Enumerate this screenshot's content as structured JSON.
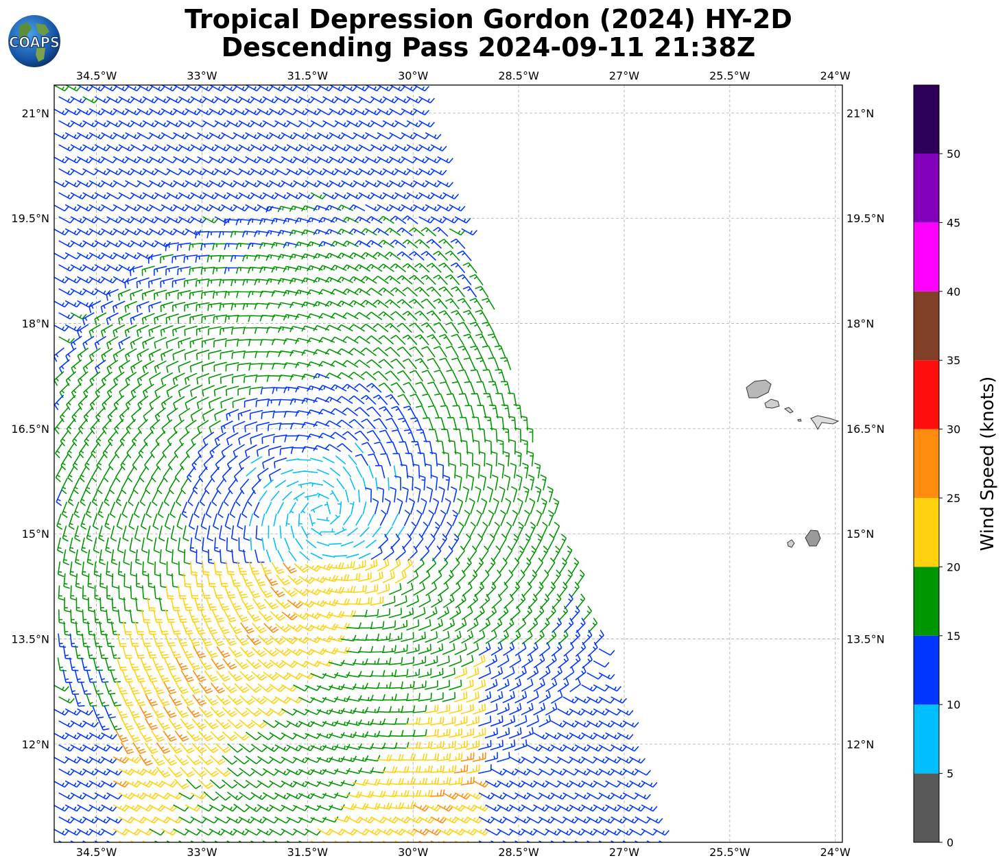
{
  "title": {
    "line1": "Tropical Depression Gordon (2024) HY-2D",
    "line2": "Descending Pass 2024-09-11 21:38Z"
  },
  "logo": {
    "text": "COAPS"
  },
  "map": {
    "lon_range": [
      -35.1,
      -23.9
    ],
    "lat_range": [
      10.6,
      21.4
    ],
    "lon_ticks": [
      "34.5°W",
      "33°W",
      "31.5°W",
      "30°W",
      "28.5°W",
      "27°W",
      "25.5°W",
      "24°W"
    ],
    "lat_ticks": [
      "21°N",
      "19.5°N",
      "18°N",
      "16.5°N",
      "15°N",
      "13.5°N",
      "12°N"
    ],
    "lon_tick_values": [
      -34.5,
      -33,
      -31.5,
      -30,
      -28.5,
      -27,
      -25.5,
      -24
    ],
    "lat_tick_values": [
      21,
      19.5,
      18,
      16.5,
      15,
      13.5,
      12
    ],
    "gridlines": true,
    "islands": "Cape Verde Islands"
  },
  "colorbar": {
    "label": "Wind Speed (knots)",
    "ticks": [
      "0",
      "5",
      "10",
      "15",
      "20",
      "25",
      "30",
      "35",
      "40",
      "45",
      "50"
    ],
    "colors": [
      "#595959",
      "#00bfff",
      "#0036ff",
      "#009600",
      "#ffd10e",
      "#ff8c0c",
      "#ff0e0e",
      "#823f27",
      "#ff00ff",
      "#8300bb",
      "#2d0059"
    ]
  },
  "chart_data": {
    "type": "wind-barbs",
    "center": {
      "lon": -31.3,
      "lat": 15.3
    },
    "speed_units": "knots"
  }
}
